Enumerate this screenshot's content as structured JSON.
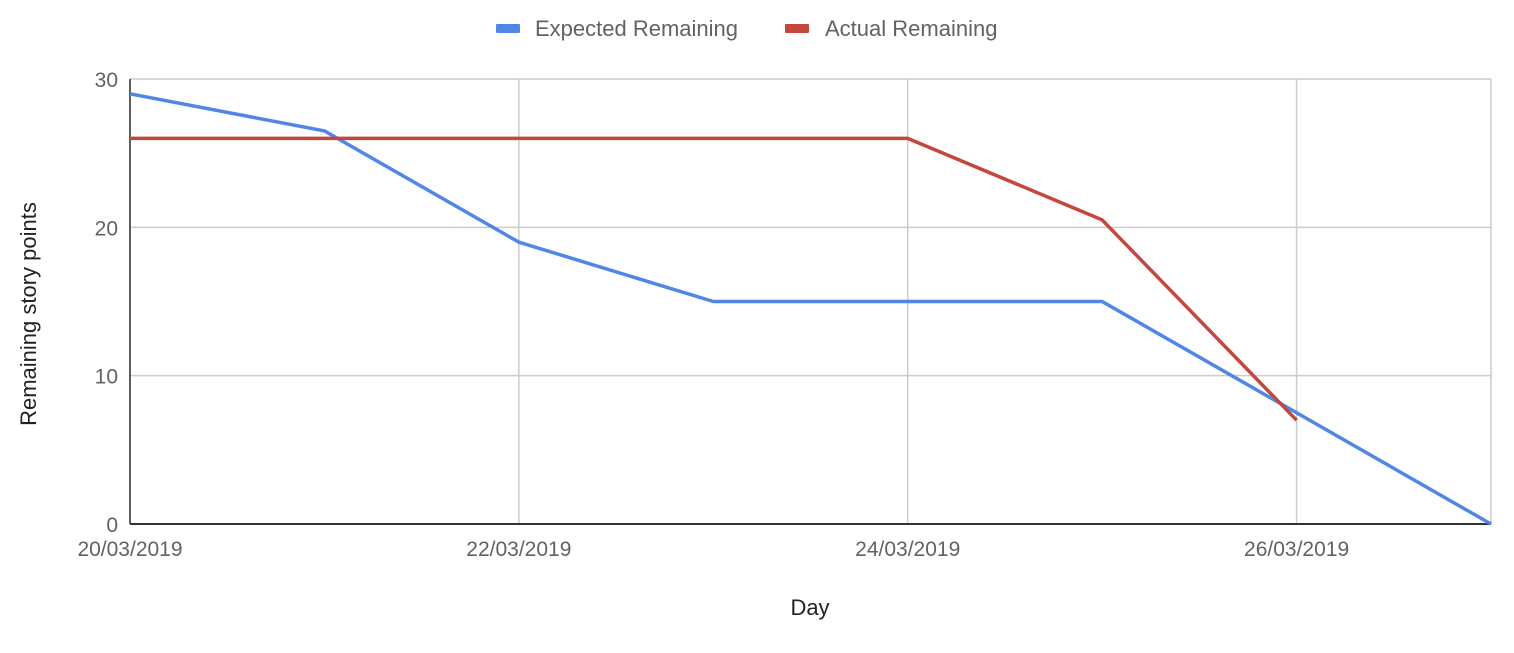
{
  "chart_data": {
    "type": "line",
    "xlabel": "Day",
    "ylabel": "Remaining story points",
    "x": [
      "20/03/2019",
      "21/03/2019",
      "22/03/2019",
      "23/03/2019",
      "24/03/2019",
      "25/03/2019",
      "26/03/2019",
      "27/03/2019"
    ],
    "x_tick_labels": [
      "20/03/2019",
      "22/03/2019",
      "24/03/2019",
      "26/03/2019"
    ],
    "y_ticks": [
      0,
      10,
      20,
      30
    ],
    "ylim": [
      0,
      30
    ],
    "grid": true,
    "legend_position": "top",
    "series": [
      {
        "name": "Expected Remaining",
        "color": "#4f86e8",
        "values": [
          29,
          26.5,
          19,
          15,
          15,
          15,
          7.5,
          0
        ]
      },
      {
        "name": "Actual Remaining",
        "color": "#c5473b",
        "values": [
          26,
          26,
          26,
          26,
          26,
          20.5,
          7,
          null
        ]
      }
    ]
  }
}
